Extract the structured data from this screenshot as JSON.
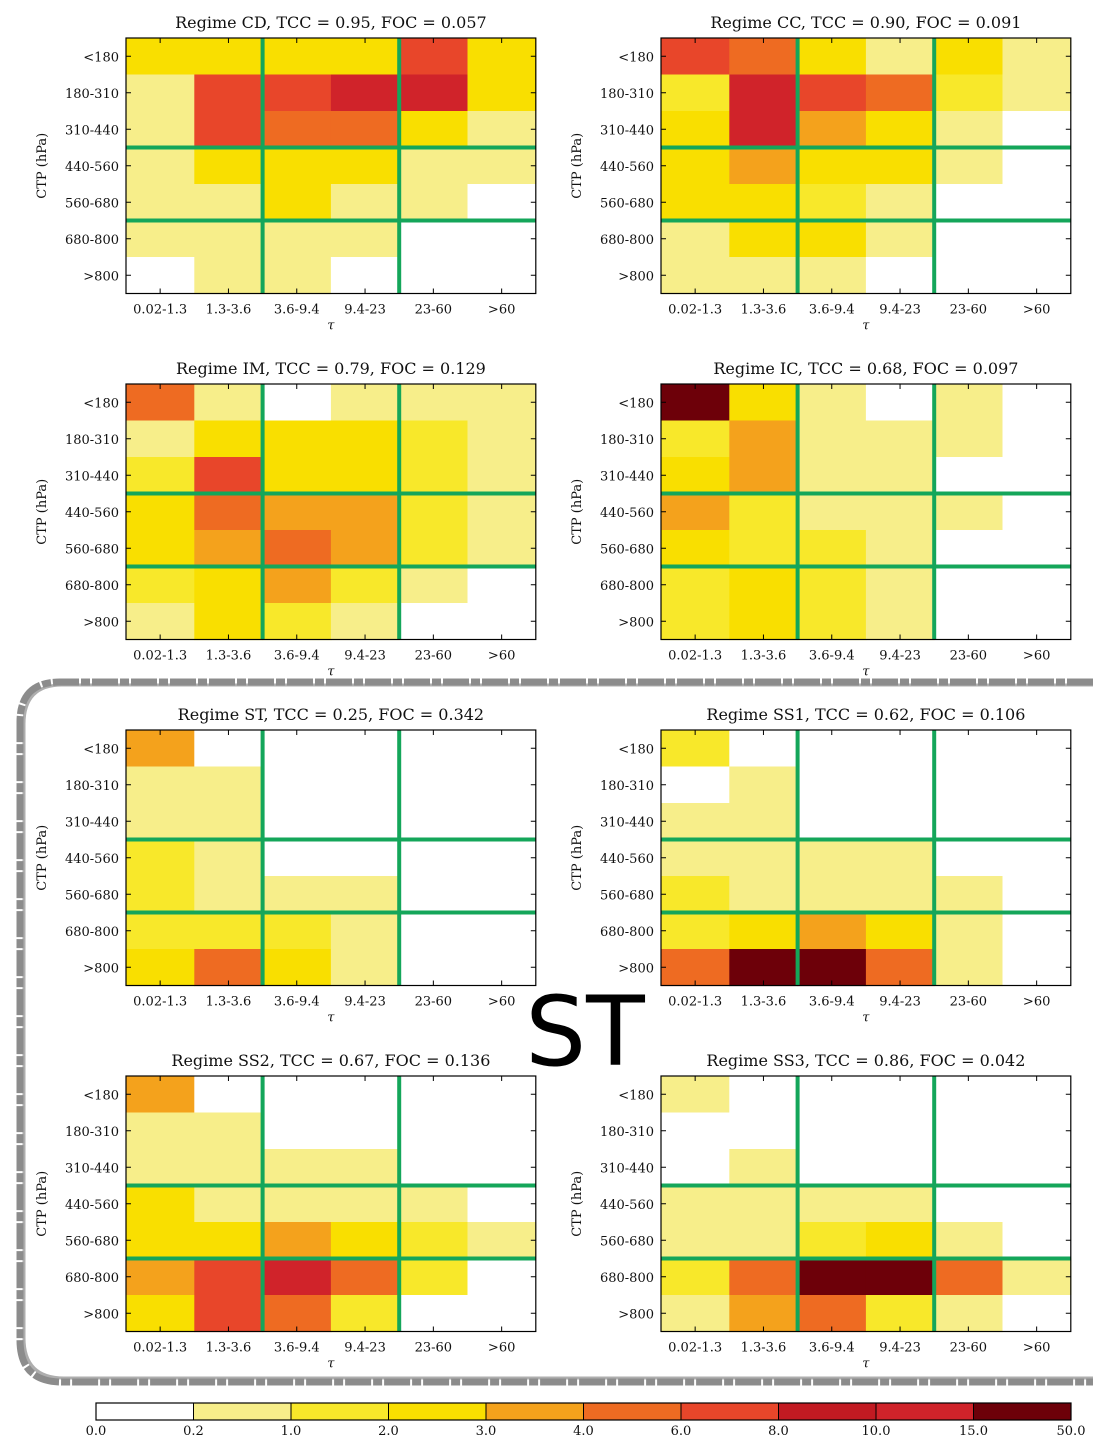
{
  "figure_label": "ST",
  "colors": {
    "grid_line": "#14a65a",
    "bracket": "#8c8c8c",
    "bin_colors": [
      "#ffffff",
      "#f7ee8a",
      "#f8e82a",
      "#f9df00",
      "#f4a21c",
      "#ee6b22",
      "#e8462a",
      "#c21a22",
      "#6d0009"
    ]
  },
  "chart_data": [
    {
      "type": "heatmap",
      "title": "Regime CD, TCC = 0.95, FOC = 0.057",
      "xlabel": "τ",
      "ylabel": "CTP (hPa)",
      "x_categories": [
        "0.02-1.3",
        "1.3-3.6",
        "3.6-9.4",
        "9.4-23",
        "23-60",
        ">60"
      ],
      "y_categories": [
        "<180",
        "180-310",
        "310-440",
        "440-560",
        "560-680",
        "680-800",
        ">800"
      ],
      "values": [
        [
          2.5,
          2.5,
          2.5,
          2.5,
          7.0,
          2.5
        ],
        [
          0.5,
          7.0,
          7.5,
          12.0,
          12.0,
          2.5
        ],
        [
          0.5,
          7.0,
          5.0,
          5.0,
          2.5,
          0.5
        ],
        [
          0.5,
          2.5,
          2.5,
          2.5,
          0.5,
          0.5
        ],
        [
          0.5,
          0.5,
          2.5,
          0.5,
          0.5,
          0.0
        ],
        [
          0.5,
          0.5,
          0.5,
          0.5,
          0.0,
          0.0
        ],
        [
          0.0,
          0.5,
          0.5,
          0.0,
          0.0,
          0.0
        ]
      ]
    },
    {
      "type": "heatmap",
      "title": "Regime CC, TCC = 0.90, FOC = 0.091",
      "xlabel": "τ",
      "ylabel": "CTP (hPa)",
      "x_categories": [
        "0.02-1.3",
        "1.3-3.6",
        "3.6-9.4",
        "9.4-23",
        "23-60",
        ">60"
      ],
      "y_categories": [
        "<180",
        "180-310",
        "310-440",
        "440-560",
        "560-680",
        "680-800",
        ">800"
      ],
      "values": [
        [
          7.0,
          5.0,
          2.5,
          0.5,
          2.5,
          0.5
        ],
        [
          1.5,
          12.0,
          7.0,
          5.0,
          1.5,
          0.5
        ],
        [
          2.5,
          12.0,
          3.5,
          2.5,
          0.5,
          0.0
        ],
        [
          2.5,
          3.5,
          2.5,
          2.5,
          0.5,
          0.0
        ],
        [
          2.5,
          2.5,
          1.5,
          0.5,
          0.0,
          0.0
        ],
        [
          0.5,
          2.5,
          2.5,
          0.5,
          0.0,
          0.0
        ],
        [
          0.5,
          0.5,
          0.5,
          0.0,
          0.0,
          0.0
        ]
      ]
    },
    {
      "type": "heatmap",
      "title": "Regime IM, TCC = 0.79, FOC = 0.129",
      "xlabel": "τ",
      "ylabel": "CTP (hPa)",
      "x_categories": [
        "0.02-1.3",
        "1.3-3.6",
        "3.6-9.4",
        "9.4-23",
        "23-60",
        ">60"
      ],
      "y_categories": [
        "<180",
        "180-310",
        "310-440",
        "440-560",
        "560-680",
        "680-800",
        ">800"
      ],
      "values": [
        [
          5.0,
          0.5,
          0.0,
          0.5,
          0.5,
          0.5
        ],
        [
          0.5,
          2.5,
          2.5,
          2.5,
          1.5,
          0.5
        ],
        [
          1.5,
          7.0,
          2.5,
          2.5,
          1.5,
          0.5
        ],
        [
          2.5,
          5.0,
          3.5,
          3.5,
          1.5,
          0.5
        ],
        [
          2.5,
          3.5,
          5.0,
          3.5,
          1.5,
          0.5
        ],
        [
          1.5,
          2.5,
          3.5,
          1.5,
          0.5,
          0.0
        ],
        [
          0.5,
          2.5,
          1.5,
          0.5,
          0.0,
          0.0
        ]
      ]
    },
    {
      "type": "heatmap",
      "title": "Regime IC, TCC = 0.68, FOC = 0.097",
      "xlabel": "τ",
      "ylabel": "CTP (hPa)",
      "x_categories": [
        "0.02-1.3",
        "1.3-3.6",
        "3.6-9.4",
        "9.4-23",
        "23-60",
        ">60"
      ],
      "y_categories": [
        "<180",
        "180-310",
        "310-440",
        "440-560",
        "560-680",
        "680-800",
        ">800"
      ],
      "values": [
        [
          25.0,
          2.5,
          0.5,
          0.0,
          0.5,
          0.0
        ],
        [
          1.5,
          3.5,
          0.5,
          0.5,
          0.5,
          0.0
        ],
        [
          2.5,
          3.5,
          0.5,
          0.5,
          0.0,
          0.0
        ],
        [
          3.5,
          1.5,
          0.5,
          0.5,
          0.5,
          0.0
        ],
        [
          2.5,
          1.5,
          1.5,
          0.5,
          0.0,
          0.0
        ],
        [
          1.5,
          2.5,
          1.5,
          0.5,
          0.0,
          0.0
        ],
        [
          1.5,
          2.5,
          1.5,
          0.5,
          0.0,
          0.0
        ]
      ]
    },
    {
      "type": "heatmap",
      "title": "Regime ST, TCC = 0.25, FOC = 0.342",
      "xlabel": "τ",
      "ylabel": "CTP (hPa)",
      "x_categories": [
        "0.02-1.3",
        "1.3-3.6",
        "3.6-9.4",
        "9.4-23",
        "23-60",
        ">60"
      ],
      "y_categories": [
        "<180",
        "180-310",
        "310-440",
        "440-560",
        "560-680",
        "680-800",
        ">800"
      ],
      "values": [
        [
          3.5,
          0.0,
          0.0,
          0.0,
          0.0,
          0.0
        ],
        [
          0.5,
          0.5,
          0.0,
          0.0,
          0.0,
          0.0
        ],
        [
          0.5,
          0.5,
          0.0,
          0.0,
          0.0,
          0.0
        ],
        [
          1.5,
          0.5,
          0.0,
          0.0,
          0.0,
          0.0
        ],
        [
          1.5,
          0.5,
          0.5,
          0.5,
          0.0,
          0.0
        ],
        [
          1.5,
          1.5,
          1.5,
          0.5,
          0.0,
          0.0
        ],
        [
          2.5,
          5.0,
          2.5,
          0.5,
          0.0,
          0.0
        ]
      ]
    },
    {
      "type": "heatmap",
      "title": "Regime SS1, TCC = 0.62, FOC = 0.106",
      "xlabel": "τ",
      "ylabel": "CTP (hPa)",
      "x_categories": [
        "0.02-1.3",
        "1.3-3.6",
        "3.6-9.4",
        "9.4-23",
        "23-60",
        ">60"
      ],
      "y_categories": [
        "<180",
        "180-310",
        "310-440",
        "440-560",
        "560-680",
        "680-800",
        ">800"
      ],
      "values": [
        [
          1.5,
          0.0,
          0.0,
          0.0,
          0.0,
          0.0
        ],
        [
          0.0,
          0.5,
          0.0,
          0.0,
          0.0,
          0.0
        ],
        [
          0.5,
          0.5,
          0.0,
          0.0,
          0.0,
          0.0
        ],
        [
          0.5,
          0.5,
          0.5,
          0.5,
          0.0,
          0.0
        ],
        [
          1.5,
          0.5,
          0.5,
          0.5,
          0.5,
          0.0
        ],
        [
          1.5,
          2.5,
          3.5,
          2.5,
          0.5,
          0.0
        ],
        [
          5.0,
          25.0,
          25.0,
          5.0,
          0.5,
          0.0
        ]
      ]
    },
    {
      "type": "heatmap",
      "title": "Regime SS2, TCC = 0.67, FOC = 0.136",
      "xlabel": "τ",
      "ylabel": "CTP (hPa)",
      "x_categories": [
        "0.02-1.3",
        "1.3-3.6",
        "3.6-9.4",
        "9.4-23",
        "23-60",
        ">60"
      ],
      "y_categories": [
        "<180",
        "180-310",
        "310-440",
        "440-560",
        "560-680",
        "680-800",
        ">800"
      ],
      "values": [
        [
          3.5,
          0.0,
          0.0,
          0.0,
          0.0,
          0.0
        ],
        [
          0.5,
          0.5,
          0.0,
          0.0,
          0.0,
          0.0
        ],
        [
          0.5,
          0.5,
          0.5,
          0.5,
          0.0,
          0.0
        ],
        [
          2.5,
          0.5,
          0.5,
          0.5,
          0.5,
          0.0
        ],
        [
          2.5,
          2.5,
          3.5,
          2.5,
          1.5,
          0.5
        ],
        [
          3.5,
          7.0,
          12.0,
          5.0,
          1.5,
          0.0
        ],
        [
          2.5,
          7.0,
          5.0,
          1.5,
          0.0,
          0.0
        ]
      ]
    },
    {
      "type": "heatmap",
      "title": "Regime SS3, TCC = 0.86, FOC = 0.042",
      "xlabel": "τ",
      "ylabel": "CTP (hPa)",
      "x_categories": [
        "0.02-1.3",
        "1.3-3.6",
        "3.6-9.4",
        "9.4-23",
        "23-60",
        ">60"
      ],
      "y_categories": [
        "<180",
        "180-310",
        "310-440",
        "440-560",
        "560-680",
        "680-800",
        ">800"
      ],
      "values": [
        [
          0.5,
          0.0,
          0.0,
          0.0,
          0.0,
          0.0
        ],
        [
          0.0,
          0.0,
          0.0,
          0.0,
          0.0,
          0.0
        ],
        [
          0.0,
          0.5,
          0.0,
          0.0,
          0.0,
          0.0
        ],
        [
          0.5,
          0.5,
          0.5,
          0.5,
          0.0,
          0.0
        ],
        [
          0.5,
          0.5,
          1.5,
          2.5,
          0.5,
          0.0
        ],
        [
          1.5,
          5.0,
          25.0,
          25.0,
          5.0,
          0.5
        ],
        [
          0.5,
          3.5,
          5.0,
          1.5,
          0.5,
          0.0
        ]
      ]
    }
  ],
  "colorbar": {
    "ticks": [
      "0.0",
      "0.2",
      "1.0",
      "2.0",
      "3.0",
      "4.0",
      "6.0",
      "8.0",
      "10.0",
      "15.0",
      "50.0"
    ],
    "bounds": [
      0.0,
      0.2,
      1.0,
      2.0,
      3.0,
      4.0,
      6.0,
      8.0,
      10.0,
      15.0,
      50.0
    ],
    "colors": [
      "#ffffff",
      "#f7ee8a",
      "#f8e82a",
      "#f9df00",
      "#f4a21c",
      "#ee6b22",
      "#e8462a",
      "#c21a22",
      "#d0232a",
      "#6d0009"
    ]
  }
}
